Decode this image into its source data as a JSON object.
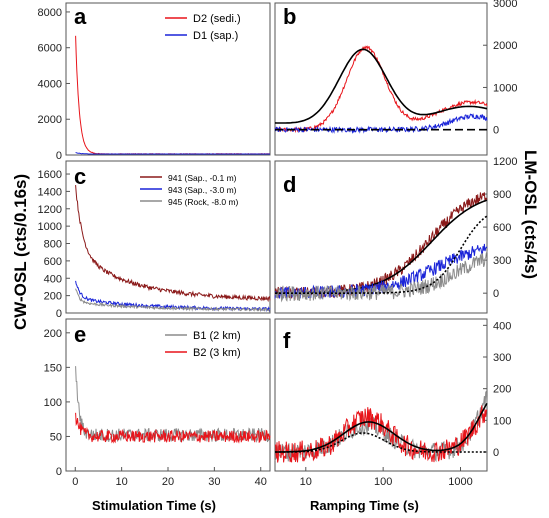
{
  "axis_labels": {
    "cw_ylabel": "CW-OSL (cts/0.16s)",
    "lm_ylabel": "LM-OSL (cts/4s)",
    "cw_xlabel": "Stimulation Time (s)",
    "lm_xlabel": "Ramping Time (s)"
  },
  "colors": {
    "red": "#e8141a",
    "blue": "#1a24d8",
    "darkred": "#8b1a1a",
    "gray": "#8c8c8c",
    "black": "#000000"
  },
  "chart_data": [
    {
      "panel": "a",
      "type": "line",
      "scale_x": "linear",
      "scale_y": "linear",
      "xlim": [
        -2,
        42
      ],
      "ylim": [
        0,
        8500
      ],
      "xticks": [],
      "yticks": [
        "0",
        "2000",
        "4000",
        "6000",
        "8000"
      ],
      "legend": "top-right",
      "series": [
        {
          "name": "D2 (sedi.)",
          "color": "red",
          "shape": "decay",
          "y0": 7200,
          "tau": 0.8,
          "base": 60,
          "noise": 15
        },
        {
          "name": "D1 (sap.)",
          "color": "blue",
          "shape": "decay",
          "y0": 140,
          "tau": 1.5,
          "base": 40,
          "noise": 8
        }
      ]
    },
    {
      "panel": "b",
      "type": "line",
      "scale_x": "log",
      "scale_y": "linear",
      "xlim": [
        4,
        2200
      ],
      "ylim": [
        -600,
        3000
      ],
      "xticks": [],
      "yticks": [
        "0",
        "1000",
        "2000",
        "3000"
      ],
      "legend": "none",
      "series": [
        {
          "name": "",
          "color": "red",
          "shape": "peaks",
          "peaks": [
            [
              60,
              1950,
              0.5
            ],
            [
              1400,
              650,
              0.9
            ]
          ],
          "noise": 40
        },
        {
          "name": "",
          "color": "black",
          "shape": "peaks",
          "peaks": [
            [
              55,
              1850,
              0.62
            ],
            [
              1300,
              550,
              1.0
            ]
          ],
          "offset": 180,
          "noise": 0
        },
        {
          "name": "",
          "color": "blue",
          "shape": "peaks",
          "peaks": [
            [
              1500,
              320,
              0.6
            ]
          ],
          "noise": 60
        },
        {
          "name": "",
          "color": "black",
          "shape": "flat",
          "value": 0,
          "dash": true
        }
      ]
    },
    {
      "panel": "c",
      "type": "line",
      "scale_x": "linear",
      "scale_y": "linear",
      "xlim": [
        -2,
        42
      ],
      "ylim": [
        0,
        1750
      ],
      "xticks": [],
      "yticks": [
        "0",
        "200",
        "400",
        "600",
        "800",
        "1000",
        "1200",
        "1400",
        "1600"
      ],
      "legend": "top-right",
      "series": [
        {
          "name": "941 (Sap., -0.1 m)",
          "color": "darkred",
          "shape": "decay2",
          "y0": 1500,
          "tau": 1.5,
          "a2": 550,
          "tau2": 12,
          "base": 150,
          "noise": 25
        },
        {
          "name": "943 (Sap., -3.0 m)",
          "color": "blue",
          "shape": "decay2",
          "y0": 380,
          "tau": 1.0,
          "a2": 130,
          "tau2": 14,
          "base": 40,
          "noise": 18
        },
        {
          "name": "945 (Rock, -8.0 m)",
          "color": "gray",
          "shape": "decay2",
          "y0": 300,
          "tau": 0.8,
          "a2": 90,
          "tau2": 14,
          "base": 35,
          "noise": 15
        }
      ]
    },
    {
      "panel": "d",
      "type": "line",
      "scale_x": "log",
      "scale_y": "linear",
      "xlim": [
        4,
        2200
      ],
      "ylim": [
        -180,
        1200
      ],
      "xticks": [],
      "yticks": [
        "0",
        "300",
        "600",
        "900",
        "1200"
      ],
      "legend": "none",
      "series": [
        {
          "name": "",
          "color": "darkred",
          "shape": "rise",
          "amp": 960,
          "mid": 400,
          "width": 1.2,
          "noise": 55
        },
        {
          "name": "",
          "color": "black",
          "shape": "rise",
          "amp": 930,
          "mid": 420,
          "width": 1.25,
          "noise": 0
        },
        {
          "name": "",
          "color": "blue",
          "shape": "rise",
          "amp": 470,
          "mid": 500,
          "width": 1.4,
          "noise": 60
        },
        {
          "name": "",
          "color": "gray",
          "shape": "rise",
          "amp": 380,
          "mid": 900,
          "width": 1.0,
          "noise": 70
        },
        {
          "name": "",
          "color": "black",
          "shape": "rise",
          "amp": 800,
          "mid": 1000,
          "width": 0.7,
          "noise": 0,
          "dash": true
        }
      ]
    },
    {
      "panel": "e",
      "type": "line",
      "scale_x": "linear",
      "scale_y": "linear",
      "xlim": [
        -2,
        42
      ],
      "ylim": [
        0,
        220
      ],
      "xticks": [
        "0",
        "10",
        "20",
        "30",
        "40"
      ],
      "yticks": [
        "0",
        "50",
        "100",
        "150",
        "200"
      ],
      "legend": "top-right",
      "series": [
        {
          "name": "B1 (2 km)",
          "color": "gray",
          "shape": "decay",
          "y0": 165,
          "tau": 0.7,
          "base": 52,
          "noise": 10
        },
        {
          "name": "B2 (3 km)",
          "color": "red",
          "shape": "decay",
          "y0": 82,
          "tau": 1.0,
          "base": 50,
          "noise": 9
        }
      ]
    },
    {
      "panel": "f",
      "type": "line",
      "scale_x": "log",
      "scale_y": "linear",
      "xlim": [
        4,
        2200
      ],
      "ylim": [
        -60,
        420
      ],
      "xticks": [
        "10",
        "100",
        "1000"
      ],
      "yticks": [
        "0",
        "100",
        "200",
        "300",
        "400"
      ],
      "legend": "none",
      "series": [
        {
          "name": "",
          "color": "gray",
          "shape": "peaksrise",
          "peaks": [
            [
              60,
              85,
              0.6
            ]
          ],
          "amp": 250,
          "mid": 1800,
          "width": 0.45,
          "noise": 30
        },
        {
          "name": "",
          "color": "red",
          "shape": "peaksrise",
          "peaks": [
            [
              62,
              110,
              0.55
            ]
          ],
          "amp": 180,
          "mid": 1600,
          "width": 0.5,
          "noise": 35
        },
        {
          "name": "",
          "color": "black",
          "shape": "peaksrise",
          "peaks": [
            [
              65,
              95,
              0.65
            ]
          ],
          "amp": 230,
          "mid": 1800,
          "width": 0.5,
          "noise": 0
        },
        {
          "name": "",
          "color": "black",
          "shape": "peaks",
          "peaks": [
            [
              55,
              60,
              0.55
            ]
          ],
          "noise": 0,
          "dash": true
        }
      ]
    }
  ]
}
